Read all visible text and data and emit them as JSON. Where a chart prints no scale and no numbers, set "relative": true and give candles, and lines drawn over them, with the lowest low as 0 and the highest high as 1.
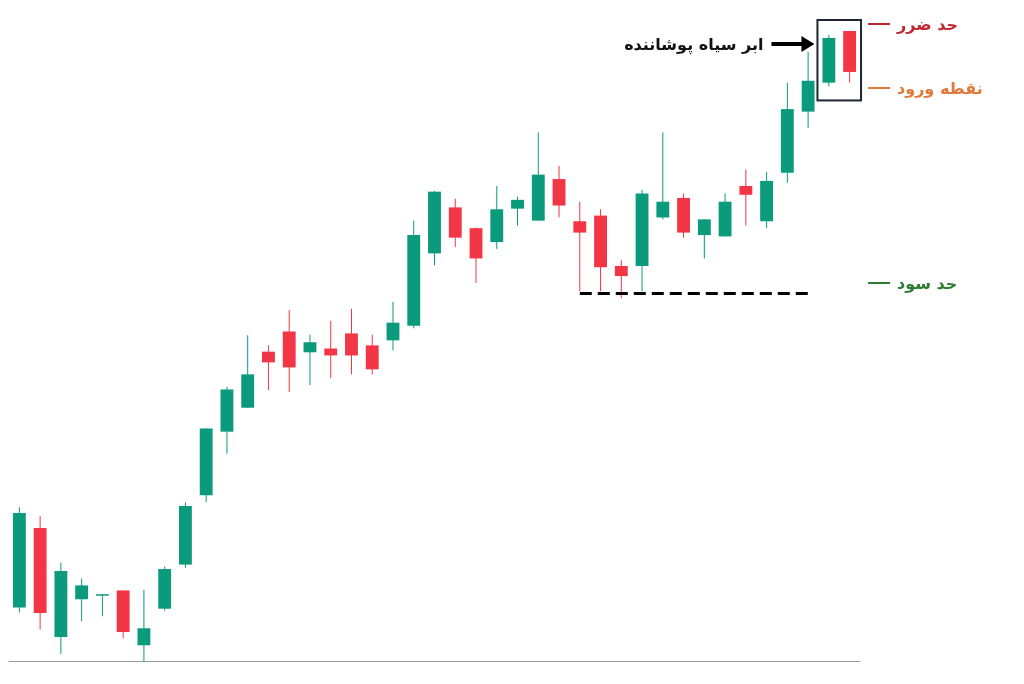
{
  "chart_data": {
    "type": "candlestick",
    "relative": true,
    "categories": [
      null,
      null,
      null,
      null,
      null,
      null,
      null,
      null,
      null,
      null,
      null,
      null,
      null,
      null,
      null,
      null,
      null,
      null,
      null,
      null,
      null,
      null,
      null,
      null,
      null,
      null,
      null,
      null,
      null,
      null,
      null,
      null,
      null,
      null,
      null,
      null,
      null,
      null,
      null,
      null,
      null
    ],
    "series": [
      {
        "ohlc": [
          [
            0.085,
            0.244,
            0.077,
            0.235
          ],
          [
            0.211,
            0.23,
            0.05,
            0.076
          ],
          [
            0.038,
            0.156,
            0.011,
            0.143
          ],
          [
            0.098,
            0.131,
            0.063,
            0.12
          ],
          [
            0.104,
            0.106,
            0.071,
            0.106
          ],
          [
            0.112,
            0.112,
            0.036,
            0.046
          ],
          [
            0.025,
            0.113,
            0,
            0.052
          ],
          [
            0.083,
            0.15,
            0.08,
            0.146
          ],
          [
            0.153,
            0.252,
            0.148,
            0.246
          ],
          [
            0.263,
            0.37,
            0.252,
            0.369
          ],
          [
            0.364,
            0.435,
            0.329,
            0.431
          ],
          [
            0.402,
            0.517,
            0.402,
            0.455
          ],
          [
            0.491,
            0.501,
            0.43,
            0.474
          ],
          [
            0.523,
            0.557,
            0.427,
            0.466
          ],
          [
            0.49,
            0.518,
            0.438,
            0.506
          ],
          [
            0.496,
            0.54,
            0.449,
            0.485
          ],
          [
            0.52,
            0.559,
            0.455,
            0.485
          ],
          [
            0.501,
            0.518,
            0.455,
            0.463
          ],
          [
            0.509,
            0.57,
            0.493,
            0.537
          ],
          [
            0.532,
            0.699,
            0.528,
            0.676
          ],
          [
            0.647,
            0.746,
            0.628,
            0.745
          ],
          [
            0.72,
            0.734,
            0.657,
            0.672
          ],
          [
            0.687,
            0.688,
            0.6,
            0.639
          ],
          [
            0.665,
            0.754,
            0.654,
            0.717
          ],
          [
            0.718,
            0.737,
            0.691,
            0.732
          ],
          [
            0.699,
            0.839,
            0.699,
            0.772
          ],
          [
            0.765,
            0.786,
            0.704,
            0.723
          ],
          [
            0.698,
            0.729,
            0.587,
            0.68
          ],
          [
            0.707,
            0.717,
            0.587,
            0.625
          ],
          [
            0.627,
            0.636,
            0.576,
            0.611
          ],
          [
            0.627,
            0.748,
            0.587,
            0.742
          ],
          [
            0.704,
            0.839,
            0.701,
            0.729
          ],
          [
            0.735,
            0.742,
            0.672,
            0.68
          ],
          [
            0.676,
            0.701,
            0.639,
            0.701
          ],
          [
            0.674,
            0.742,
            0.674,
            0.729
          ],
          [
            0.754,
            0.78,
            0.691,
            0.74
          ],
          [
            0.698,
            0.776,
            0.687,
            0.762
          ],
          [
            0.775,
            0.918,
            0.759,
            0.876
          ],
          [
            0.872,
            0.967,
            0.846,
            0.921
          ],
          [
            0.918,
            0.994,
            0.912,
            0.989
          ],
          [
            1,
            1,
            0.918,
            0.935
          ]
        ],
        "colors": [
          "#0b9b7c",
          "#f23645",
          "#0b9b7c",
          "#0b9b7c",
          "#0b9b7c",
          "#f23645",
          "#0b9b7c",
          "#0b9b7c",
          "#0b9b7c",
          "#0b9b7c",
          "#0b9b7c",
          "#0b9b7c",
          "#f23645",
          "#f23645",
          "#0b9b7c",
          "#f23645",
          "#f23645",
          "#f23645",
          "#0b9b7c",
          "#0b9b7c",
          "#0b9b7c",
          "#f23645",
          "#f23645",
          "#0b9b7c",
          "#0b9b7c",
          "#0b9b7c",
          "#f23645",
          "#f23645",
          "#f23645",
          "#f23645",
          "#0b9b7c",
          "#0b9b7c",
          "#f23645",
          "#0b9b7c",
          "#0b9b7c",
          "#f23645",
          "#0b9b7c",
          "#0b9b7c",
          "#0b9b7c",
          "#0b9b7c",
          "#f23645"
        ]
      }
    ],
    "ref_lines": [
      {
        "axis": "y",
        "value": 0.583,
        "color": "#000000",
        "line_style": "dashed"
      }
    ],
    "annotations": [
      "ابر سیاه پوشاننده",
      "حد ضرر",
      "نقطه ورود",
      "حد سود"
    ]
  }
}
